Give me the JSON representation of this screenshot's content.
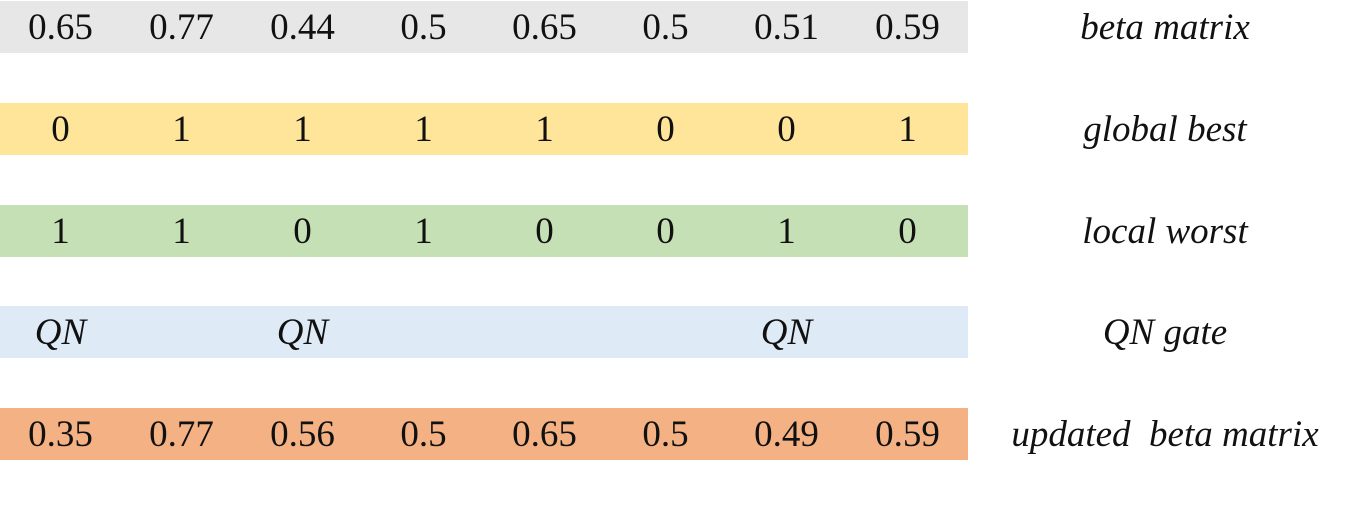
{
  "rows": [
    {
      "id": "beta",
      "name": "beta-matrix",
      "label": "beta matrix",
      "color": "#e7e7e7",
      "cells": [
        "0.65",
        "0.77",
        "0.44",
        "0.5",
        "0.65",
        "0.5",
        "0.51",
        "0.59"
      ]
    },
    {
      "id": "gbest",
      "name": "global-best",
      "label": "global best",
      "color": "#fee599",
      "cells": [
        "0",
        "1",
        "1",
        "1",
        "1",
        "0",
        "0",
        "1"
      ]
    },
    {
      "id": "lworst",
      "name": "local-worst",
      "label": "local worst",
      "color": "#c5e0b4",
      "cells": [
        "1",
        "1",
        "0",
        "1",
        "0",
        "0",
        "1",
        "0"
      ]
    },
    {
      "id": "qn",
      "name": "qn-gate",
      "label": "QN gate",
      "color": "#deebf7",
      "cells": [
        "QN",
        "",
        "QN",
        "",
        "",
        "",
        "QN",
        ""
      ]
    },
    {
      "id": "updated",
      "name": "updated-beta-matrix",
      "label": "updated  beta matrix",
      "color": "#f4b183",
      "cells": [
        "0.35",
        "0.77",
        "0.56",
        "0.5",
        "0.65",
        "0.5",
        "0.49",
        "0.59"
      ]
    }
  ]
}
